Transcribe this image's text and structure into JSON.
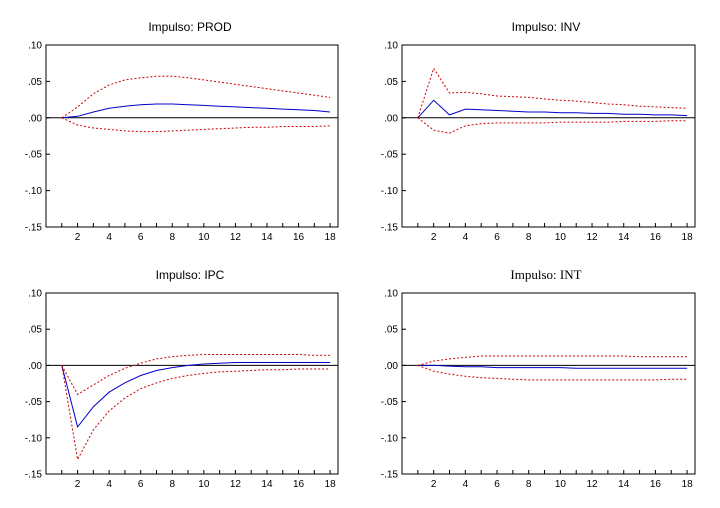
{
  "chart_data": [
    {
      "type": "line",
      "title": "Impulso: PROD",
      "x": [
        1,
        2,
        3,
        4,
        5,
        6,
        7,
        8,
        9,
        10,
        11,
        12,
        13,
        14,
        15,
        16,
        17,
        18
      ],
      "xticks": [
        2,
        4,
        6,
        8,
        10,
        12,
        14,
        16,
        18
      ],
      "xlim": [
        0,
        18.5
      ],
      "ylim": [
        -0.15,
        0.1
      ],
      "yticks": [
        0.1,
        0.05,
        0.0,
        -0.05,
        -0.1,
        -0.15
      ],
      "ytick_labels": [
        ".10",
        ".05",
        ".00",
        "-.05",
        "-.10",
        "-.15"
      ],
      "series": [
        {
          "role": "response",
          "color": "#0000cc",
          "values": [
            0.0,
            0.002,
            0.008,
            0.013,
            0.016,
            0.018,
            0.019,
            0.019,
            0.018,
            0.017,
            0.016,
            0.015,
            0.014,
            0.013,
            0.012,
            0.011,
            0.01,
            0.008
          ]
        },
        {
          "role": "upper",
          "color": "#cc0000",
          "values": [
            0.0,
            0.015,
            0.033,
            0.045,
            0.052,
            0.055,
            0.057,
            0.057,
            0.055,
            0.052,
            0.049,
            0.046,
            0.043,
            0.04,
            0.037,
            0.034,
            0.031,
            0.028
          ]
        },
        {
          "role": "lower",
          "color": "#cc0000",
          "values": [
            0.0,
            -0.01,
            -0.014,
            -0.016,
            -0.018,
            -0.019,
            -0.019,
            -0.018,
            -0.017,
            -0.016,
            -0.015,
            -0.014,
            -0.013,
            -0.013,
            -0.012,
            -0.012,
            -0.012,
            -0.011
          ]
        }
      ]
    },
    {
      "type": "line",
      "title": "Impulso: INV",
      "x": [
        1,
        2,
        3,
        4,
        5,
        6,
        7,
        8,
        9,
        10,
        11,
        12,
        13,
        14,
        15,
        16,
        17,
        18
      ],
      "xticks": [
        2,
        4,
        6,
        8,
        10,
        12,
        14,
        16,
        18
      ],
      "xlim": [
        0,
        18.5
      ],
      "ylim": [
        -0.15,
        0.1
      ],
      "yticks": [
        0.1,
        0.05,
        0.0,
        -0.05,
        -0.1,
        -0.15
      ],
      "ytick_labels": [
        ".10",
        ".05",
        ".00",
        "-.05",
        "-.10",
        "-.15"
      ],
      "series": [
        {
          "role": "response",
          "color": "#0000cc",
          "values": [
            0.0,
            0.024,
            0.004,
            0.012,
            0.011,
            0.01,
            0.009,
            0.008,
            0.008,
            0.007,
            0.007,
            0.006,
            0.006,
            0.005,
            0.005,
            0.004,
            0.004,
            0.003
          ]
        },
        {
          "role": "upper",
          "color": "#cc0000",
          "values": [
            0.0,
            0.068,
            0.034,
            0.035,
            0.033,
            0.03,
            0.029,
            0.028,
            0.026,
            0.024,
            0.023,
            0.021,
            0.019,
            0.018,
            0.016,
            0.015,
            0.014,
            0.013
          ]
        },
        {
          "role": "lower",
          "color": "#cc0000",
          "values": [
            0.0,
            -0.017,
            -0.021,
            -0.011,
            -0.008,
            -0.007,
            -0.007,
            -0.007,
            -0.007,
            -0.006,
            -0.006,
            -0.006,
            -0.006,
            -0.005,
            -0.005,
            -0.005,
            -0.004,
            -0.004
          ]
        }
      ]
    },
    {
      "type": "line",
      "title": "Impulso: IPC",
      "x": [
        1,
        2,
        3,
        4,
        5,
        6,
        7,
        8,
        9,
        10,
        11,
        12,
        13,
        14,
        15,
        16,
        17,
        18
      ],
      "xticks": [
        2,
        4,
        6,
        8,
        10,
        12,
        14,
        16,
        18
      ],
      "xlim": [
        0,
        18.5
      ],
      "ylim": [
        -0.15,
        0.1
      ],
      "yticks": [
        0.1,
        0.05,
        0.0,
        -0.05,
        -0.1,
        -0.15
      ],
      "ytick_labels": [
        ".10",
        ".05",
        ".00",
        "-.05",
        "-.10",
        "-.15"
      ],
      "series": [
        {
          "role": "response",
          "color": "#0000cc",
          "values": [
            0.0,
            -0.085,
            -0.057,
            -0.037,
            -0.024,
            -0.014,
            -0.007,
            -0.003,
            0.0,
            0.002,
            0.003,
            0.004,
            0.004,
            0.004,
            0.004,
            0.004,
            0.004,
            0.004
          ]
        },
        {
          "role": "upper",
          "color": "#cc0000",
          "values": [
            0.0,
            -0.04,
            -0.027,
            -0.014,
            -0.004,
            0.003,
            0.009,
            0.012,
            0.014,
            0.015,
            0.015,
            0.015,
            0.015,
            0.015,
            0.015,
            0.015,
            0.014,
            0.014
          ]
        },
        {
          "role": "lower",
          "color": "#cc0000",
          "values": [
            0.0,
            -0.13,
            -0.089,
            -0.063,
            -0.045,
            -0.032,
            -0.024,
            -0.018,
            -0.014,
            -0.011,
            -0.009,
            -0.008,
            -0.007,
            -0.006,
            -0.006,
            -0.005,
            -0.005,
            -0.005
          ]
        }
      ]
    },
    {
      "type": "line",
      "title": "Impulso: INT",
      "x": [
        1,
        2,
        3,
        4,
        5,
        6,
        7,
        8,
        9,
        10,
        11,
        12,
        13,
        14,
        15,
        16,
        17,
        18
      ],
      "xticks": [
        2,
        4,
        6,
        8,
        10,
        12,
        14,
        16,
        18
      ],
      "xlim": [
        0,
        18.5
      ],
      "ylim": [
        -0.15,
        0.1
      ],
      "yticks": [
        0.1,
        0.05,
        0.0,
        -0.05,
        -0.1,
        -0.15
      ],
      "ytick_labels": [
        ".10",
        ".05",
        ".00",
        "-.05",
        "-.10",
        "-.15"
      ],
      "series": [
        {
          "role": "response",
          "color": "#0000cc",
          "values": [
            0.0,
            0.0,
            -0.001,
            -0.002,
            -0.002,
            -0.003,
            -0.003,
            -0.003,
            -0.003,
            -0.003,
            -0.004,
            -0.004,
            -0.004,
            -0.004,
            -0.004,
            -0.004,
            -0.004,
            -0.004
          ]
        },
        {
          "role": "upper",
          "color": "#cc0000",
          "values": [
            0.0,
            0.006,
            0.009,
            0.011,
            0.013,
            0.013,
            0.013,
            0.013,
            0.013,
            0.013,
            0.013,
            0.013,
            0.013,
            0.013,
            0.012,
            0.012,
            0.012,
            0.012
          ]
        },
        {
          "role": "lower",
          "color": "#cc0000",
          "values": [
            0.0,
            -0.008,
            -0.012,
            -0.015,
            -0.017,
            -0.018,
            -0.019,
            -0.02,
            -0.02,
            -0.02,
            -0.02,
            -0.02,
            -0.02,
            -0.02,
            -0.02,
            -0.02,
            -0.019,
            -0.019
          ]
        }
      ]
    }
  ]
}
